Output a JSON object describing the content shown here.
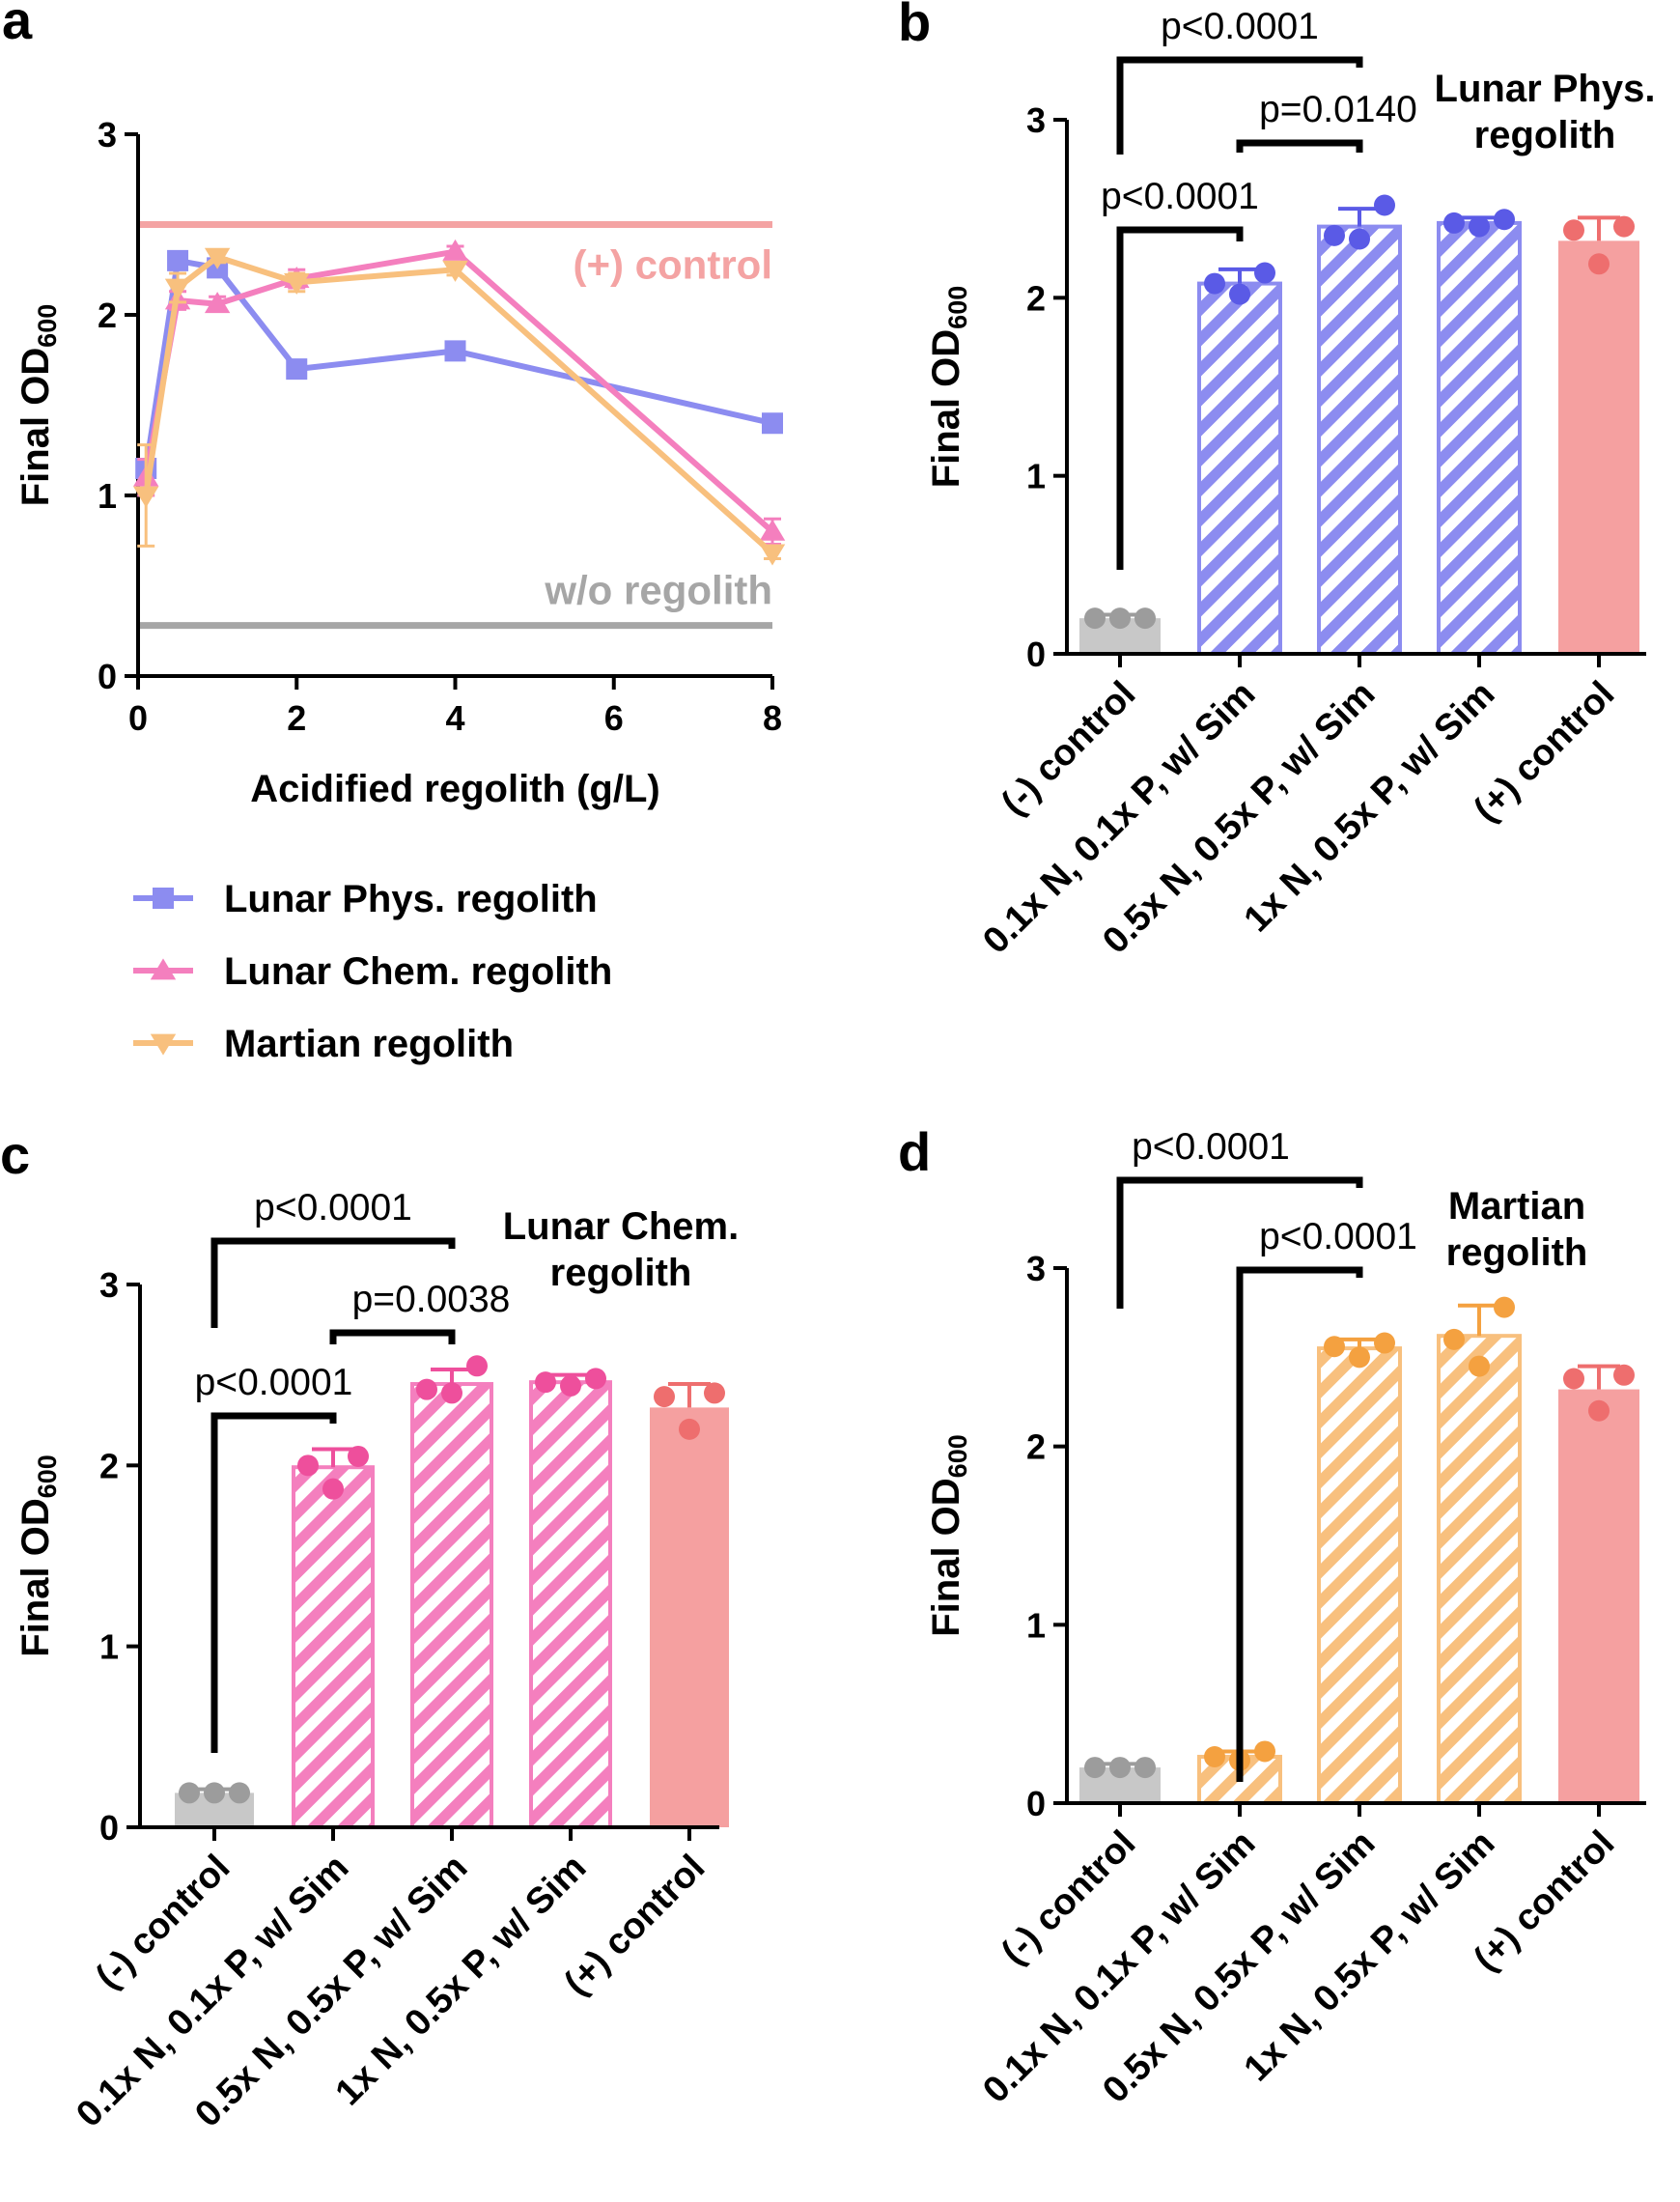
{
  "colors": {
    "lunar_phys": "#8C8CF0",
    "lunar_chem": "#F47FBE",
    "martian": "#F8C07E",
    "positive": "#F5A0A0",
    "negative": "#C8C8C8",
    "ref_positive": "#F4A3A3",
    "ref_negative": "#A6A6A6",
    "phys_dot": "#5A5AE6",
    "chem_dot": "#EE4F9C",
    "mars_dot": "#F4A140",
    "pos_dot": "#EE6E6E",
    "neg_dot": "#9C9C9C"
  },
  "chart_data": [
    {
      "panel": "a",
      "type": "line",
      "xlabel": "Acidified regolith  (g/L)",
      "ylabel_main": "Final OD",
      "ylabel_sub": "600",
      "xlim": [
        0,
        8
      ],
      "ylim": [
        0,
        3
      ],
      "xticks": [
        "0",
        "2",
        "4",
        "6",
        "8"
      ],
      "yticks": [
        "0",
        "1",
        "2",
        "3"
      ],
      "reference_lines": [
        {
          "label": "(+) control",
          "value": 2.5,
          "color_key": "ref_positive"
        },
        {
          "label": "w/o regolith",
          "value": 0.28,
          "color_key": "ref_negative"
        }
      ],
      "series": [
        {
          "name": "Lunar Phys. regolith",
          "marker": "square",
          "color_key": "lunar_phys",
          "x": [
            0.1,
            0.5,
            1,
            2,
            4,
            8
          ],
          "y": [
            1.15,
            2.3,
            2.26,
            1.7,
            1.8,
            1.4
          ],
          "err": [
            0.05,
            0.03,
            0.03,
            0.03,
            0.03,
            0.03
          ]
        },
        {
          "name": "Lunar Chem. regolith",
          "marker": "triangle-up",
          "color_key": "lunar_chem",
          "x": [
            0.1,
            0.5,
            1,
            2,
            4,
            8
          ],
          "y": [
            1.1,
            2.08,
            2.06,
            2.2,
            2.35,
            0.8
          ],
          "err": [
            0.1,
            0.05,
            0.04,
            0.05,
            0.03,
            0.07
          ]
        },
        {
          "name": "Martian regolith",
          "marker": "triangle-down",
          "color_key": "martian",
          "x": [
            0.1,
            0.5,
            1,
            2,
            4,
            8
          ],
          "y": [
            1.0,
            2.15,
            2.32,
            2.18,
            2.25,
            0.68
          ],
          "err": [
            0.28,
            0.08,
            0.03,
            0.05,
            0.03,
            0.03
          ]
        }
      ]
    },
    {
      "panel": "b",
      "type": "bar",
      "title": [
        "Lunar Phys.",
        "regolith"
      ],
      "ylabel_main": "Final OD",
      "ylabel_sub": "600",
      "ylim": [
        0,
        3
      ],
      "yticks": [
        "0",
        "1",
        "2",
        "3"
      ],
      "categories": [
        "(-) control",
        "0.1x N, 0.1x P, w/ Sim",
        "0.5x N, 0.5x P, w/ Sim",
        "1x N, 0.5x P, w/ Sim",
        "(+) control"
      ],
      "values": [
        0.2,
        2.08,
        2.4,
        2.42,
        2.32
      ],
      "errors": [
        0.02,
        0.08,
        0.1,
        0.03,
        0.13
      ],
      "points": [
        [
          0.2,
          0.2,
          0.2
        ],
        [
          2.02,
          2.08,
          2.14
        ],
        [
          2.33,
          2.35,
          2.52
        ],
        [
          2.4,
          2.42,
          2.44
        ],
        [
          2.19,
          2.38,
          2.4
        ]
      ],
      "bar_colors": [
        "negative",
        "lunar_phys",
        "lunar_phys",
        "lunar_phys",
        "positive"
      ],
      "dot_colors": [
        "neg_dot",
        "phys_dot",
        "phys_dot",
        "phys_dot",
        "pos_dot"
      ],
      "hatched": [
        false,
        true,
        true,
        true,
        false
      ],
      "comparisons": [
        {
          "from": 0,
          "to": 2,
          "label": "p<0.0001"
        },
        {
          "from": 1,
          "to": 2,
          "label": "p=0.0140"
        },
        {
          "from": 0,
          "to": 1,
          "label": "p<0.0001"
        }
      ]
    },
    {
      "panel": "c",
      "type": "bar",
      "title": [
        "Lunar Chem.",
        "regolith"
      ],
      "ylabel_main": "Final OD",
      "ylabel_sub": "600",
      "ylim": [
        0,
        3
      ],
      "yticks": [
        "0",
        "1",
        "2",
        "3"
      ],
      "categories": [
        "(-) control",
        "0.1x N, 0.1x P, w/ Sim",
        "0.5x N, 0.5x P, w/ Sim",
        "1x N, 0.5x P, w/ Sim",
        "(+) control"
      ],
      "values": [
        0.19,
        1.99,
        2.45,
        2.46,
        2.32
      ],
      "errors": [
        0.02,
        0.1,
        0.08,
        0.04,
        0.13
      ],
      "points": [
        [
          0.19,
          0.19,
          0.19
        ],
        [
          1.87,
          2.0,
          2.05
        ],
        [
          2.4,
          2.42,
          2.55
        ],
        [
          2.44,
          2.46,
          2.48
        ],
        [
          2.2,
          2.38,
          2.4
        ]
      ],
      "bar_colors": [
        "negative",
        "lunar_chem",
        "lunar_chem",
        "lunar_chem",
        "positive"
      ],
      "dot_colors": [
        "neg_dot",
        "chem_dot",
        "chem_dot",
        "chem_dot",
        "pos_dot"
      ],
      "hatched": [
        false,
        true,
        true,
        true,
        false
      ],
      "comparisons": [
        {
          "from": 0,
          "to": 2,
          "label": "p<0.0001"
        },
        {
          "from": 1,
          "to": 2,
          "label": "p=0.0038"
        },
        {
          "from": 0,
          "to": 1,
          "label": "p<0.0001"
        }
      ]
    },
    {
      "panel": "d",
      "type": "bar",
      "title": [
        "Martian",
        "regolith"
      ],
      "ylabel_main": "Final OD",
      "ylabel_sub": "600",
      "ylim": [
        0,
        3
      ],
      "yticks": [
        "0",
        "1",
        "2",
        "3"
      ],
      "categories": [
        "(-) control",
        "0.1x N, 0.1x P, w/ Sim",
        "0.5x N, 0.5x P, w/ Sim",
        "1x N, 0.5x P, w/ Sim",
        "(+) control"
      ],
      "values": [
        0.2,
        0.26,
        2.55,
        2.62,
        2.32
      ],
      "errors": [
        0.02,
        0.03,
        0.05,
        0.17,
        0.13
      ],
      "points": [
        [
          0.2,
          0.2,
          0.2
        ],
        [
          0.24,
          0.26,
          0.29
        ],
        [
          2.5,
          2.56,
          2.58
        ],
        [
          2.45,
          2.6,
          2.78
        ],
        [
          2.2,
          2.38,
          2.4
        ]
      ],
      "bar_colors": [
        "negative",
        "martian",
        "martian",
        "martian",
        "positive"
      ],
      "dot_colors": [
        "neg_dot",
        "mars_dot",
        "mars_dot",
        "mars_dot",
        "pos_dot"
      ],
      "hatched": [
        false,
        true,
        true,
        true,
        false
      ],
      "comparisons": [
        {
          "from": 0,
          "to": 2,
          "label": "p<0.0001"
        },
        {
          "from": 1,
          "to": 2,
          "label": "p<0.0001"
        }
      ]
    }
  ]
}
